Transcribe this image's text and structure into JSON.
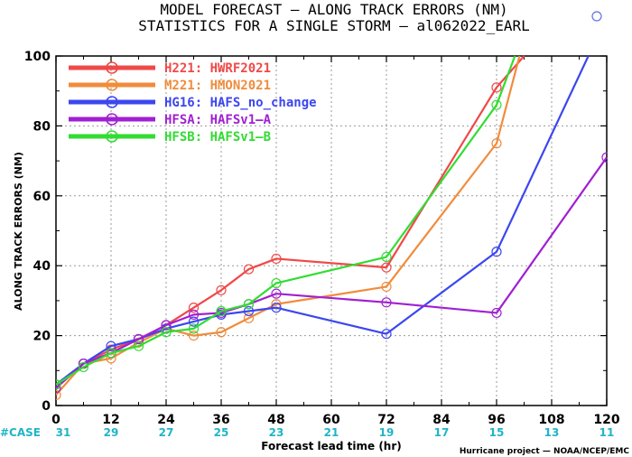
{
  "chart_data": {
    "type": "line",
    "title_line1": "MODEL FORECAST — ALONG TRACK ERRORS (NM)",
    "title_line2": "STATISTICS FOR A SINGLE STORM — al062022_EARL",
    "xlabel": "Forecast lead time (hr)",
    "ylabel": "ALONG TRACK ERRORS (NM)",
    "xlim": [
      0,
      120
    ],
    "ylim": [
      0,
      100
    ],
    "xticks": [
      "0",
      "12",
      "24",
      "36",
      "48",
      "60",
      "72",
      "84",
      "96",
      "108",
      "120"
    ],
    "yticks": [
      "0",
      "20",
      "40",
      "60",
      "80",
      "100"
    ],
    "grid": true,
    "legend_position": "top-left",
    "case_label": "#CASE",
    "case_x": [
      0,
      12,
      24,
      36,
      48,
      60,
      72,
      84,
      96,
      108,
      120
    ],
    "case_counts": [
      "31",
      "29",
      "27",
      "25",
      "23",
      "21",
      "19",
      "17",
      "15",
      "13",
      "11"
    ],
    "credit": "Hurricane project — NOAA/NCEP/EMC",
    "series": [
      {
        "name": "H221: HWRF2021",
        "color": "#f04848",
        "x": [
          0,
          6,
          12,
          18,
          24,
          30,
          36,
          42,
          48,
          72,
          96,
          102
        ],
        "y": [
          5,
          12,
          16,
          19,
          23,
          28,
          33,
          39,
          42,
          39.5,
          91,
          100
        ]
      },
      {
        "name": "M221: HMON2021",
        "color": "#f08c3c",
        "x": [
          0,
          6,
          12,
          18,
          24,
          30,
          36,
          42,
          48,
          72,
          96,
          101
        ],
        "y": [
          3,
          12,
          13.5,
          18,
          22,
          20,
          21,
          25,
          29,
          34,
          75,
          100
        ]
      },
      {
        "name": "HG16: HAFS_no_change",
        "color": "#3c46f0",
        "x": [
          0,
          6,
          12,
          18,
          24,
          30,
          36,
          42,
          48,
          72,
          96,
          116
        ],
        "y": [
          6,
          12,
          17,
          19,
          22,
          24,
          26,
          27,
          28,
          20.5,
          44,
          100
        ]
      },
      {
        "name": "HFSA: HAFSv1—A",
        "color": "#a020d2",
        "x": [
          0,
          6,
          12,
          18,
          24,
          30,
          36,
          42,
          48,
          72,
          96,
          120
        ],
        "y": [
          5,
          12,
          15,
          19,
          23,
          26,
          26.5,
          29,
          32,
          29.5,
          26.5,
          71
        ]
      },
      {
        "name": "HFSB: HAFSv1—B",
        "color": "#32dc32",
        "x": [
          0,
          6,
          12,
          18,
          24,
          30,
          36,
          42,
          48,
          72,
          96,
          100
        ],
        "y": [
          6,
          11,
          15,
          17,
          21,
          22,
          27,
          29,
          35,
          42.5,
          86,
          100
        ]
      }
    ],
    "marker_color": "#6070e8"
  }
}
